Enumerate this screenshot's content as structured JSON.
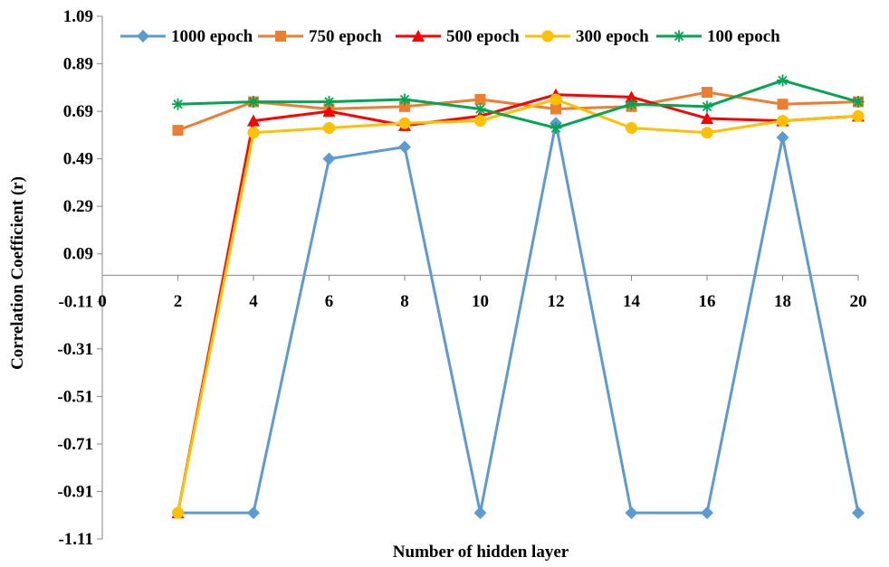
{
  "chart_data": {
    "type": "line",
    "xlabel": "Number of hidden layer",
    "ylabel": "Correlation Coefficient (r)",
    "x": [
      2,
      4,
      6,
      8,
      10,
      12,
      14,
      16,
      18,
      20
    ],
    "xlim": [
      0,
      20
    ],
    "x_ticks": [
      "0",
      "2",
      "4",
      "6",
      "8",
      "10",
      "12",
      "14",
      "16",
      "18",
      "20"
    ],
    "ylim": [
      -1.11,
      1.09
    ],
    "y_ticks": [
      "1.09",
      "0.89",
      "0.69",
      "0.49",
      "0.29",
      "0.09",
      "-0.11",
      "-0.31",
      "-0.51",
      "-0.71",
      "-0.91",
      "-1.11"
    ],
    "grid": false,
    "legend_position": "top",
    "series": [
      {
        "name": "1000 epoch",
        "color": "#5B9BD5",
        "marker": "diamond",
        "values": [
          -1.0,
          -1.0,
          0.49,
          0.54,
          -1.0,
          0.64,
          -1.0,
          -1.0,
          0.58,
          -1.0
        ]
      },
      {
        "name": "750 epoch",
        "color": "#ED7D31",
        "marker": "square",
        "values": [
          0.61,
          0.73,
          0.7,
          0.71,
          0.74,
          0.7,
          0.71,
          0.77,
          0.72,
          0.73
        ]
      },
      {
        "name": "500 epoch",
        "color": "#FF0000",
        "marker": "triangle",
        "values": [
          -1.0,
          0.65,
          0.69,
          0.63,
          0.67,
          0.76,
          0.75,
          0.66,
          0.65,
          0.67
        ]
      },
      {
        "name": "300 epoch",
        "color": "#FFC000",
        "marker": "circle",
        "values": [
          -1.0,
          0.6,
          0.62,
          0.64,
          0.65,
          0.74,
          0.62,
          0.6,
          0.65,
          0.67
        ]
      },
      {
        "name": "100 epoch",
        "color": "#00A650",
        "marker": "star",
        "values": [
          0.72,
          0.73,
          0.73,
          0.74,
          0.7,
          0.62,
          0.72,
          0.71,
          0.82,
          0.73
        ]
      }
    ]
  }
}
